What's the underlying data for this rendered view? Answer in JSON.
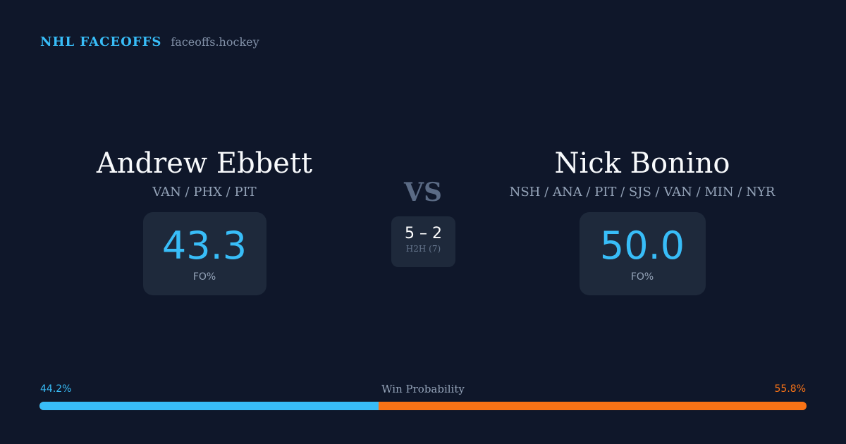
{
  "brand": {
    "name": "NHL FACEOFFS",
    "url": "faceoffs.hockey"
  },
  "left_player": {
    "name": "Andrew Ebbett",
    "teams": "VAN / PHX / PIT",
    "fo_pct": "43.3",
    "fo_label": "FO%"
  },
  "right_player": {
    "name": "Nick Bonino",
    "teams": "NSH / ANA / PIT / SJS / VAN / MIN / NYR",
    "fo_pct": "50.0",
    "fo_label": "FO%"
  },
  "vs": "VS",
  "h2h": {
    "score": "5 – 2",
    "label": "H2H (7)"
  },
  "win_probability": {
    "title": "Win Probability",
    "left_label": "44.2%",
    "right_label": "55.8%",
    "left_value": 44.2,
    "right_value": 55.8
  },
  "colors": {
    "left": "#38bdf8",
    "right": "#f97316",
    "background": "#0f172a",
    "card": "#1e293b"
  }
}
